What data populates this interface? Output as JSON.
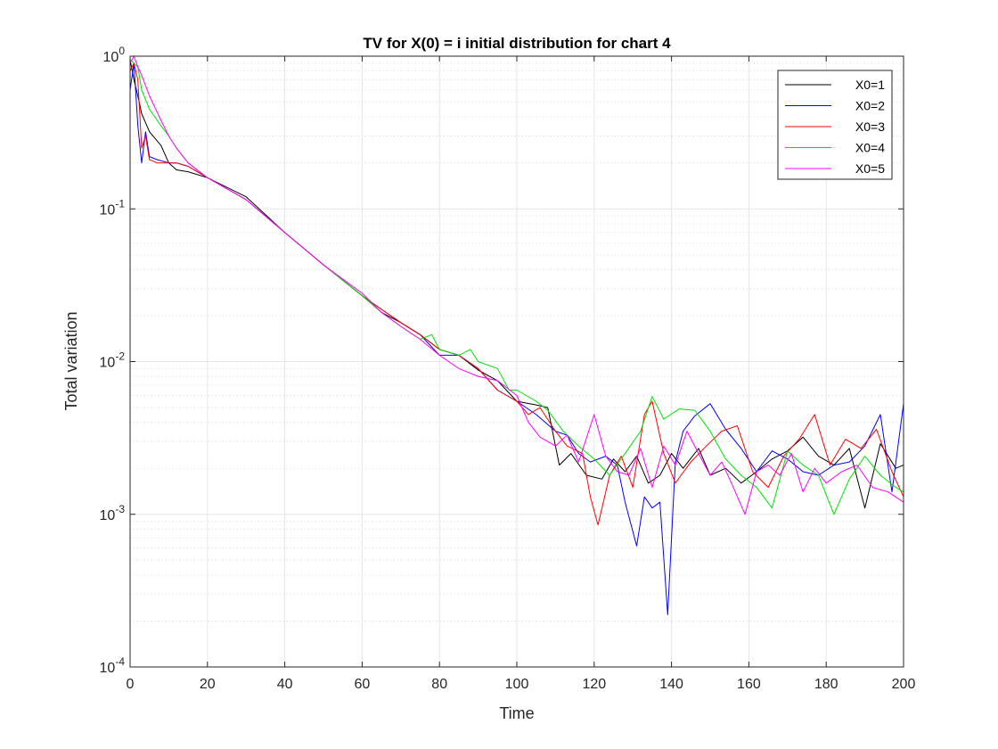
{
  "chart_data": {
    "type": "line",
    "title": "TV for X(0) = i initial distribution for chart 4",
    "xlabel": "Time",
    "ylabel": "Total variation",
    "xlim": [
      0,
      200
    ],
    "ylim": [
      0.0001,
      1
    ],
    "yscale": "log",
    "grid": true,
    "minor_grid": true,
    "legend_position": "top-right",
    "x_ticks": [
      "0",
      "20",
      "40",
      "60",
      "80",
      "100",
      "120",
      "140",
      "160",
      "180",
      "200"
    ],
    "x_tick_values": [
      0,
      20,
      40,
      60,
      80,
      100,
      120,
      140,
      160,
      180,
      200
    ],
    "y_ticks": [
      {
        "base": "10",
        "exp": "0",
        "value": 1
      },
      {
        "base": "10",
        "exp": "-1",
        "value": 0.1
      },
      {
        "base": "10",
        "exp": "-2",
        "value": 0.01
      },
      {
        "base": "10",
        "exp": "-3",
        "value": 0.001
      },
      {
        "base": "10",
        "exp": "-4",
        "value": 0.0001
      }
    ],
    "series": [
      {
        "name": "X0=1",
        "color": "#000000",
        "x": [
          0,
          1,
          2,
          3,
          5,
          8,
          10,
          12,
          15,
          20,
          30,
          40,
          50,
          60,
          65,
          70,
          75,
          80,
          85,
          90,
          95,
          100,
          105,
          108,
          111,
          114,
          118,
          122,
          125,
          128,
          131,
          134,
          137,
          140,
          143,
          147,
          150,
          154,
          158,
          162,
          166,
          170,
          174,
          178,
          182,
          186,
          190,
          194,
          198,
          200
        ],
        "y": [
          0.95,
          0.7,
          0.55,
          0.42,
          0.32,
          0.26,
          0.2,
          0.18,
          0.175,
          0.16,
          0.12,
          0.07,
          0.043,
          0.027,
          0.021,
          0.018,
          0.015,
          0.012,
          0.011,
          0.0088,
          0.0075,
          0.0055,
          0.0052,
          0.005,
          0.0021,
          0.0025,
          0.0018,
          0.0017,
          0.0023,
          0.0019,
          0.0024,
          0.0016,
          0.0018,
          0.0025,
          0.002,
          0.0027,
          0.0018,
          0.002,
          0.0016,
          0.0019,
          0.0023,
          0.0026,
          0.0032,
          0.0024,
          0.0021,
          0.0027,
          0.0011,
          0.0029,
          0.002,
          0.0021
        ]
      },
      {
        "name": "X0=2",
        "color": "#0000ff",
        "x": [
          0,
          1,
          2,
          3,
          4,
          5,
          7,
          10,
          12,
          15,
          20,
          30,
          40,
          50,
          60,
          65,
          70,
          75,
          80,
          85,
          90,
          95,
          100,
          105,
          110,
          113,
          116,
          119,
          123,
          126,
          128,
          131,
          133,
          135,
          137,
          139,
          141,
          143,
          146,
          150,
          154,
          158,
          162,
          166,
          170,
          174,
          178,
          182,
          186,
          190,
          194,
          197,
          200
        ],
        "y": [
          0.6,
          0.9,
          0.35,
          0.2,
          0.32,
          0.22,
          0.21,
          0.2,
          0.2,
          0.19,
          0.16,
          0.115,
          0.07,
          0.043,
          0.027,
          0.022,
          0.018,
          0.015,
          0.011,
          0.011,
          0.009,
          0.0065,
          0.0055,
          0.0045,
          0.0035,
          0.0033,
          0.0025,
          0.0022,
          0.0024,
          0.0021,
          0.0012,
          0.00062,
          0.0013,
          0.0011,
          0.0012,
          0.00022,
          0.0022,
          0.0035,
          0.0044,
          0.0053,
          0.0036,
          0.0027,
          0.0019,
          0.0026,
          0.0023,
          0.0019,
          0.0018,
          0.0021,
          0.0022,
          0.0028,
          0.0045,
          0.0014,
          0.0053
        ]
      },
      {
        "name": "X0=3",
        "color": "#ff0000",
        "x": [
          0,
          1,
          2,
          3,
          4,
          5,
          7,
          10,
          12,
          15,
          20,
          30,
          40,
          50,
          60,
          65,
          70,
          75,
          80,
          85,
          90,
          95,
          100,
          103,
          106,
          110,
          113,
          117,
          119,
          121,
          124,
          127,
          130,
          133,
          135,
          138,
          141,
          145,
          149,
          153,
          157,
          161,
          165,
          169,
          173,
          177,
          181,
          185,
          189,
          193,
          197,
          200
        ],
        "y": [
          0.8,
          0.9,
          0.7,
          0.25,
          0.3,
          0.21,
          0.2,
          0.2,
          0.2,
          0.19,
          0.16,
          0.115,
          0.07,
          0.043,
          0.027,
          0.022,
          0.018,
          0.015,
          0.012,
          0.011,
          0.009,
          0.0065,
          0.0055,
          0.0045,
          0.005,
          0.0035,
          0.0028,
          0.0025,
          0.0013,
          0.00085,
          0.0018,
          0.0024,
          0.0015,
          0.0045,
          0.0055,
          0.0025,
          0.0016,
          0.0022,
          0.0028,
          0.0035,
          0.0038,
          0.0019,
          0.0015,
          0.0024,
          0.0031,
          0.0045,
          0.0021,
          0.0031,
          0.0027,
          0.0036,
          0.0019,
          0.0013
        ]
      },
      {
        "name": "X0=4",
        "color": "#00e000",
        "x": [
          0,
          1,
          2,
          3,
          5,
          8,
          10,
          12,
          15,
          20,
          30,
          40,
          50,
          60,
          65,
          70,
          75,
          78,
          80,
          85,
          88,
          90,
          95,
          98,
          100,
          105,
          108,
          112,
          116,
          120,
          124,
          128,
          132,
          135,
          138,
          142,
          146,
          150,
          154,
          158,
          162,
          166,
          170,
          174,
          178,
          182,
          186,
          190,
          194,
          198,
          200
        ],
        "y": [
          0.95,
          0.9,
          0.85,
          0.6,
          0.45,
          0.35,
          0.3,
          0.25,
          0.2,
          0.16,
          0.115,
          0.07,
          0.043,
          0.027,
          0.021,
          0.017,
          0.014,
          0.015,
          0.012,
          0.011,
          0.012,
          0.01,
          0.009,
          0.0065,
          0.0065,
          0.0055,
          0.0048,
          0.0035,
          0.0028,
          0.0023,
          0.0018,
          0.0025,
          0.0035,
          0.0059,
          0.0042,
          0.0049,
          0.0048,
          0.0035,
          0.0023,
          0.0018,
          0.0015,
          0.0011,
          0.0026,
          0.0021,
          0.0018,
          0.001,
          0.0017,
          0.0024,
          0.0018,
          0.0015,
          0.0014
        ]
      },
      {
        "name": "X0=5",
        "color": "#ff00ff",
        "x": [
          0,
          1,
          2,
          3,
          5,
          8,
          10,
          12,
          15,
          20,
          30,
          40,
          50,
          60,
          65,
          70,
          75,
          80,
          85,
          90,
          95,
          100,
          103,
          106,
          110,
          113,
          116,
          120,
          123,
          126,
          129,
          132,
          135,
          138,
          141,
          144,
          147,
          150,
          153,
          156,
          159,
          162,
          165,
          168,
          171,
          174,
          177,
          180,
          184,
          188,
          192,
          196,
          200
        ],
        "y": [
          0.9,
          1.0,
          0.85,
          0.75,
          0.55,
          0.38,
          0.3,
          0.25,
          0.2,
          0.16,
          0.115,
          0.07,
          0.043,
          0.028,
          0.021,
          0.017,
          0.014,
          0.011,
          0.009,
          0.008,
          0.0075,
          0.006,
          0.004,
          0.0032,
          0.0028,
          0.0033,
          0.0022,
          0.0045,
          0.0024,
          0.0019,
          0.0018,
          0.0027,
          0.0015,
          0.0028,
          0.0021,
          0.0035,
          0.0025,
          0.0018,
          0.0022,
          0.0015,
          0.001,
          0.0019,
          0.0021,
          0.0018,
          0.0025,
          0.0014,
          0.002,
          0.0016,
          0.0019,
          0.0021,
          0.0015,
          0.0014,
          0.0012
        ]
      }
    ]
  }
}
